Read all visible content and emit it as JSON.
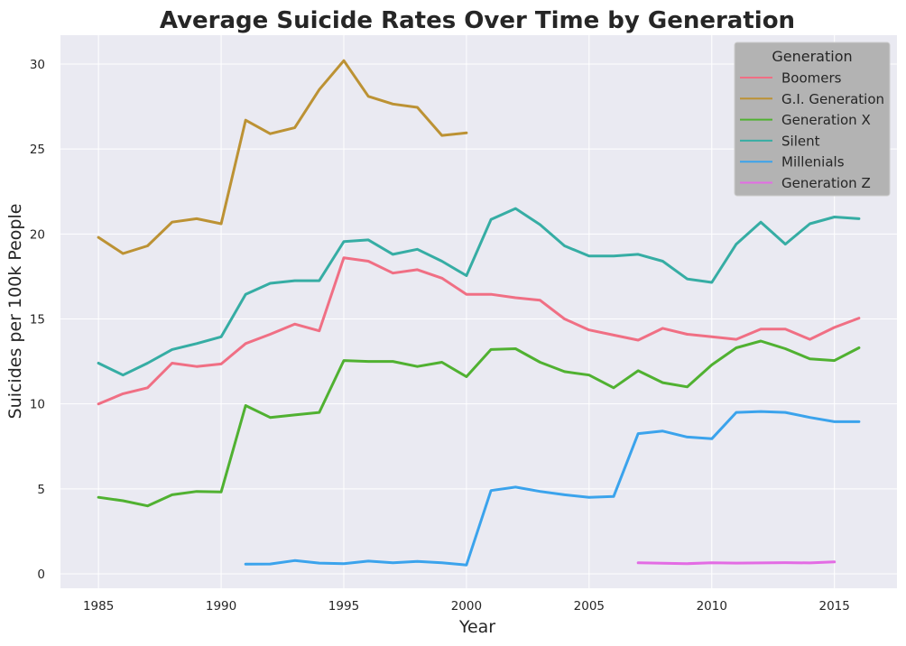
{
  "chart_data": {
    "type": "line",
    "title": "Average Suicide Rates Over Time by Generation",
    "xlabel": "Year",
    "ylabel": "Suicides per 100k People",
    "xlim": [
      1983.45,
      2017.55
    ],
    "ylim": [
      -0.85,
      31.7
    ],
    "xticks": [
      1985,
      1990,
      1995,
      2000,
      2005,
      2010,
      2015
    ],
    "yticks": [
      0,
      5,
      10,
      15,
      20,
      25,
      30
    ],
    "grid": true,
    "legend": {
      "title": "Generation",
      "position": "top-right"
    },
    "series": [
      {
        "name": "Boomers",
        "color": "#f06f84",
        "x": [
          1985,
          1986,
          1987,
          1988,
          1989,
          1990,
          1991,
          1992,
          1993,
          1994,
          1995,
          1996,
          1997,
          1998,
          1999,
          2000,
          2001,
          2002,
          2003,
          2004,
          2005,
          2006,
          2007,
          2008,
          2009,
          2010,
          2011,
          2012,
          2013,
          2014,
          2015,
          2016
        ],
        "y": [
          10.0,
          10.6,
          10.95,
          12.4,
          12.2,
          12.35,
          13.55,
          14.1,
          14.7,
          14.3,
          18.6,
          18.4,
          17.7,
          17.9,
          17.4,
          16.45,
          16.45,
          16.25,
          16.1,
          15.0,
          14.35,
          14.05,
          13.75,
          14.45,
          14.1,
          13.95,
          13.8,
          14.4,
          14.4,
          13.8,
          14.5,
          15.05
        ]
      },
      {
        "name": "G.I. Generation",
        "color": "#bc9234",
        "x": [
          1985,
          1986,
          1987,
          1988,
          1989,
          1990,
          1991,
          1992,
          1993,
          1994,
          1995,
          1996,
          1997,
          1998,
          1999,
          2000
        ],
        "y": [
          19.8,
          18.85,
          19.3,
          20.7,
          20.9,
          20.6,
          26.7,
          25.9,
          26.25,
          28.5,
          30.2,
          28.1,
          27.65,
          27.45,
          25.8,
          25.95
        ]
      },
      {
        "name": "Generation X",
        "color": "#50b131",
        "x": [
          1985,
          1986,
          1987,
          1988,
          1989,
          1990,
          1991,
          1992,
          1993,
          1994,
          1995,
          1996,
          1997,
          1998,
          1999,
          2000,
          2001,
          2002,
          2003,
          2004,
          2005,
          2006,
          2007,
          2008,
          2009,
          2010,
          2011,
          2012,
          2013,
          2014,
          2015,
          2016
        ],
        "y": [
          4.5,
          4.3,
          4.0,
          4.65,
          4.85,
          4.82,
          9.9,
          9.2,
          9.35,
          9.5,
          12.55,
          12.5,
          12.5,
          12.2,
          12.45,
          11.6,
          13.2,
          13.25,
          12.45,
          11.9,
          11.7,
          10.95,
          11.95,
          11.25,
          11.0,
          12.3,
          13.3,
          13.7,
          13.25,
          12.65,
          12.55,
          13.3
        ]
      },
      {
        "name": "Silent",
        "color": "#36ada4",
        "x": [
          1985,
          1986,
          1987,
          1988,
          1989,
          1990,
          1991,
          1992,
          1993,
          1994,
          1995,
          1996,
          1997,
          1998,
          1999,
          2000,
          2001,
          2002,
          2003,
          2004,
          2005,
          2006,
          2007,
          2008,
          2009,
          2010,
          2011,
          2012,
          2013,
          2014,
          2015,
          2016
        ],
        "y": [
          12.4,
          11.7,
          12.4,
          13.2,
          13.55,
          13.95,
          16.45,
          17.1,
          17.25,
          17.25,
          19.55,
          19.65,
          18.8,
          19.1,
          18.4,
          17.55,
          20.85,
          21.5,
          20.55,
          19.3,
          18.7,
          18.7,
          18.8,
          18.4,
          17.35,
          17.15,
          19.4,
          20.7,
          19.4,
          20.6,
          21.0,
          20.9
        ]
      },
      {
        "name": "Millenials",
        "color": "#3ba3ec",
        "x": [
          1991,
          1992,
          1993,
          1994,
          1995,
          1996,
          1997,
          1998,
          1999,
          2000,
          2001,
          2002,
          2003,
          2004,
          2005,
          2006,
          2007,
          2008,
          2009,
          2010,
          2011,
          2012,
          2013,
          2014,
          2015,
          2016
        ],
        "y": [
          0.57,
          0.58,
          0.78,
          0.63,
          0.6,
          0.75,
          0.65,
          0.73,
          0.65,
          0.52,
          4.9,
          5.1,
          4.85,
          4.65,
          4.5,
          4.55,
          8.25,
          8.4,
          8.05,
          7.95,
          9.5,
          9.55,
          9.5,
          9.2,
          8.95,
          8.95
        ]
      },
      {
        "name": "Generation Z",
        "color": "#e36ce4",
        "x": [
          2007,
          2008,
          2009,
          2010,
          2011,
          2012,
          2013,
          2014,
          2015
        ],
        "y": [
          0.65,
          0.62,
          0.6,
          0.65,
          0.63,
          0.64,
          0.66,
          0.64,
          0.7
        ]
      }
    ]
  }
}
